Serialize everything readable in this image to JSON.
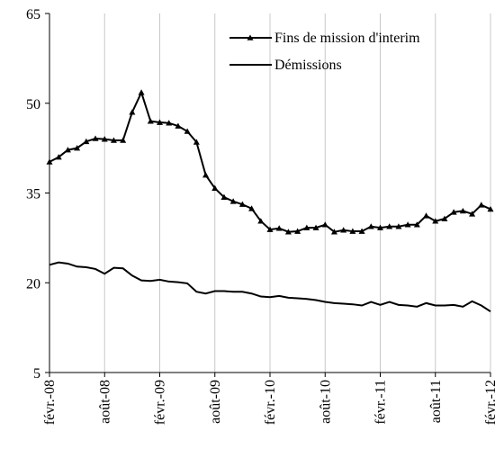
{
  "chart_data": {
    "type": "line",
    "categories": [
      "févr.-08",
      null,
      null,
      null,
      null,
      null,
      "août-08",
      null,
      null,
      null,
      null,
      null,
      "févr.-09",
      null,
      null,
      null,
      null,
      null,
      "août-09",
      null,
      null,
      null,
      null,
      null,
      "févr.-10",
      null,
      null,
      null,
      null,
      null,
      "août-10",
      null,
      null,
      null,
      null,
      null,
      "févr.-11",
      null,
      null,
      null,
      null,
      null,
      "août-11",
      null,
      null,
      null,
      null,
      null,
      "févr.-12"
    ],
    "series": [
      {
        "name": "Fins de mission d'interim",
        "color": "#000000",
        "marker": "triangle",
        "values": [
          40.2,
          41,
          42.2,
          42.5,
          43.6,
          44.1,
          44,
          43.8,
          43.8,
          48.5,
          51.8,
          47,
          46.8,
          46.7,
          46.2,
          45.3,
          43.5,
          38,
          35.8,
          34.3,
          33.6,
          33.1,
          32.4,
          30.3,
          28.9,
          29.1,
          28.5,
          28.6,
          29.2,
          29.2,
          29.7,
          28.5,
          28.8,
          28.6,
          28.6,
          29.4,
          29.2,
          29.4,
          29.4,
          29.7,
          29.7,
          31.2,
          30.3,
          30.7,
          31.8,
          32,
          31.5,
          33,
          32.3
        ]
      },
      {
        "name": "Démissions",
        "color": "#000000",
        "marker": "none",
        "values": [
          23,
          23.4,
          23.2,
          22.7,
          22.6,
          22.3,
          21.5,
          22.5,
          22.4,
          21.2,
          20.4,
          20.3,
          20.5,
          20.2,
          20.1,
          19.9,
          18.5,
          18.2,
          18.6,
          18.6,
          18.5,
          18.5,
          18.2,
          17.7,
          17.6,
          17.8,
          17.5,
          17.4,
          17.3,
          17.1,
          16.8,
          16.6,
          16.5,
          16.4,
          16.2,
          16.8,
          16.3,
          16.8,
          16.3,
          16.2,
          16,
          16.6,
          16.2,
          16.2,
          16.3,
          16,
          16.9,
          16.2,
          15.2
        ]
      }
    ],
    "ylim": [
      5,
      65
    ],
    "yticks": [
      5,
      20,
      35,
      50,
      65
    ],
    "grid": true,
    "legend": "upper right"
  }
}
